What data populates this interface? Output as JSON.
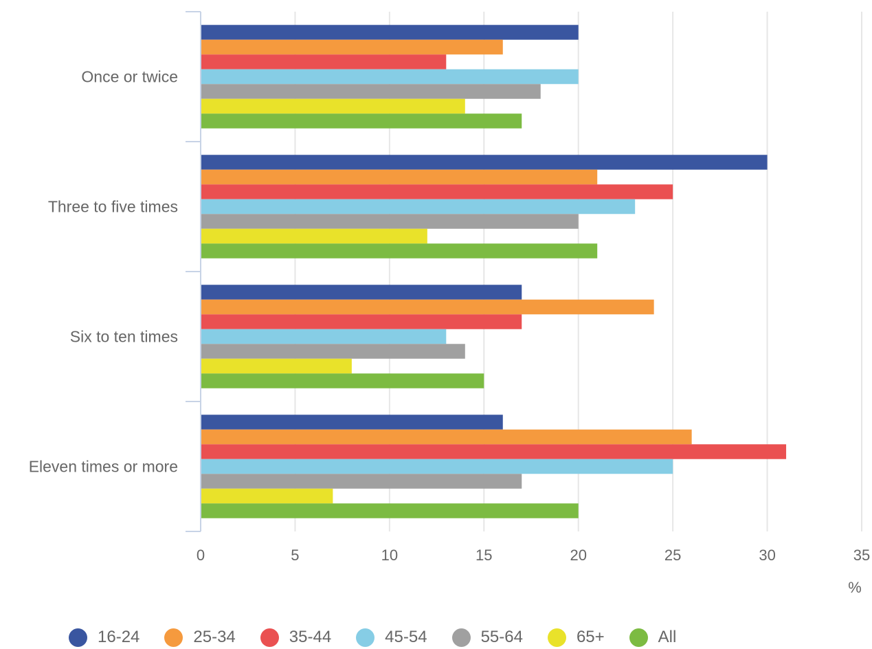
{
  "chart_data": {
    "type": "bar",
    "orientation": "horizontal",
    "categories": [
      "Once or twice",
      "Three to five times",
      "Six to ten times",
      "Eleven times or more"
    ],
    "series": [
      {
        "name": "16-24",
        "color": "#3a56a0",
        "values": [
          20,
          30,
          17,
          16
        ]
      },
      {
        "name": "25-34",
        "color": "#f59a3e",
        "values": [
          16,
          21,
          24,
          26
        ]
      },
      {
        "name": "35-44",
        "color": "#ea5051",
        "values": [
          13,
          25,
          17,
          31
        ]
      },
      {
        "name": "45-54",
        "color": "#86cde5",
        "values": [
          20,
          23,
          13,
          25
        ]
      },
      {
        "name": "55-64",
        "color": "#a0a0a0",
        "values": [
          18,
          20,
          14,
          17
        ]
      },
      {
        "name": "65+",
        "color": "#e9e22a",
        "values": [
          14,
          12,
          8,
          7
        ]
      },
      {
        "name": "All",
        "color": "#7cbb42",
        "values": [
          17,
          21,
          15,
          20
        ]
      }
    ],
    "xlim": [
      0,
      35
    ],
    "xticks": [
      0,
      5,
      10,
      15,
      20,
      25,
      30,
      35
    ],
    "xtick_labels": [
      "0",
      "5",
      "10",
      "15",
      "20",
      "25",
      "30",
      "35"
    ],
    "xunit": "%",
    "grid": "vertical",
    "legend_position": "bottom"
  }
}
